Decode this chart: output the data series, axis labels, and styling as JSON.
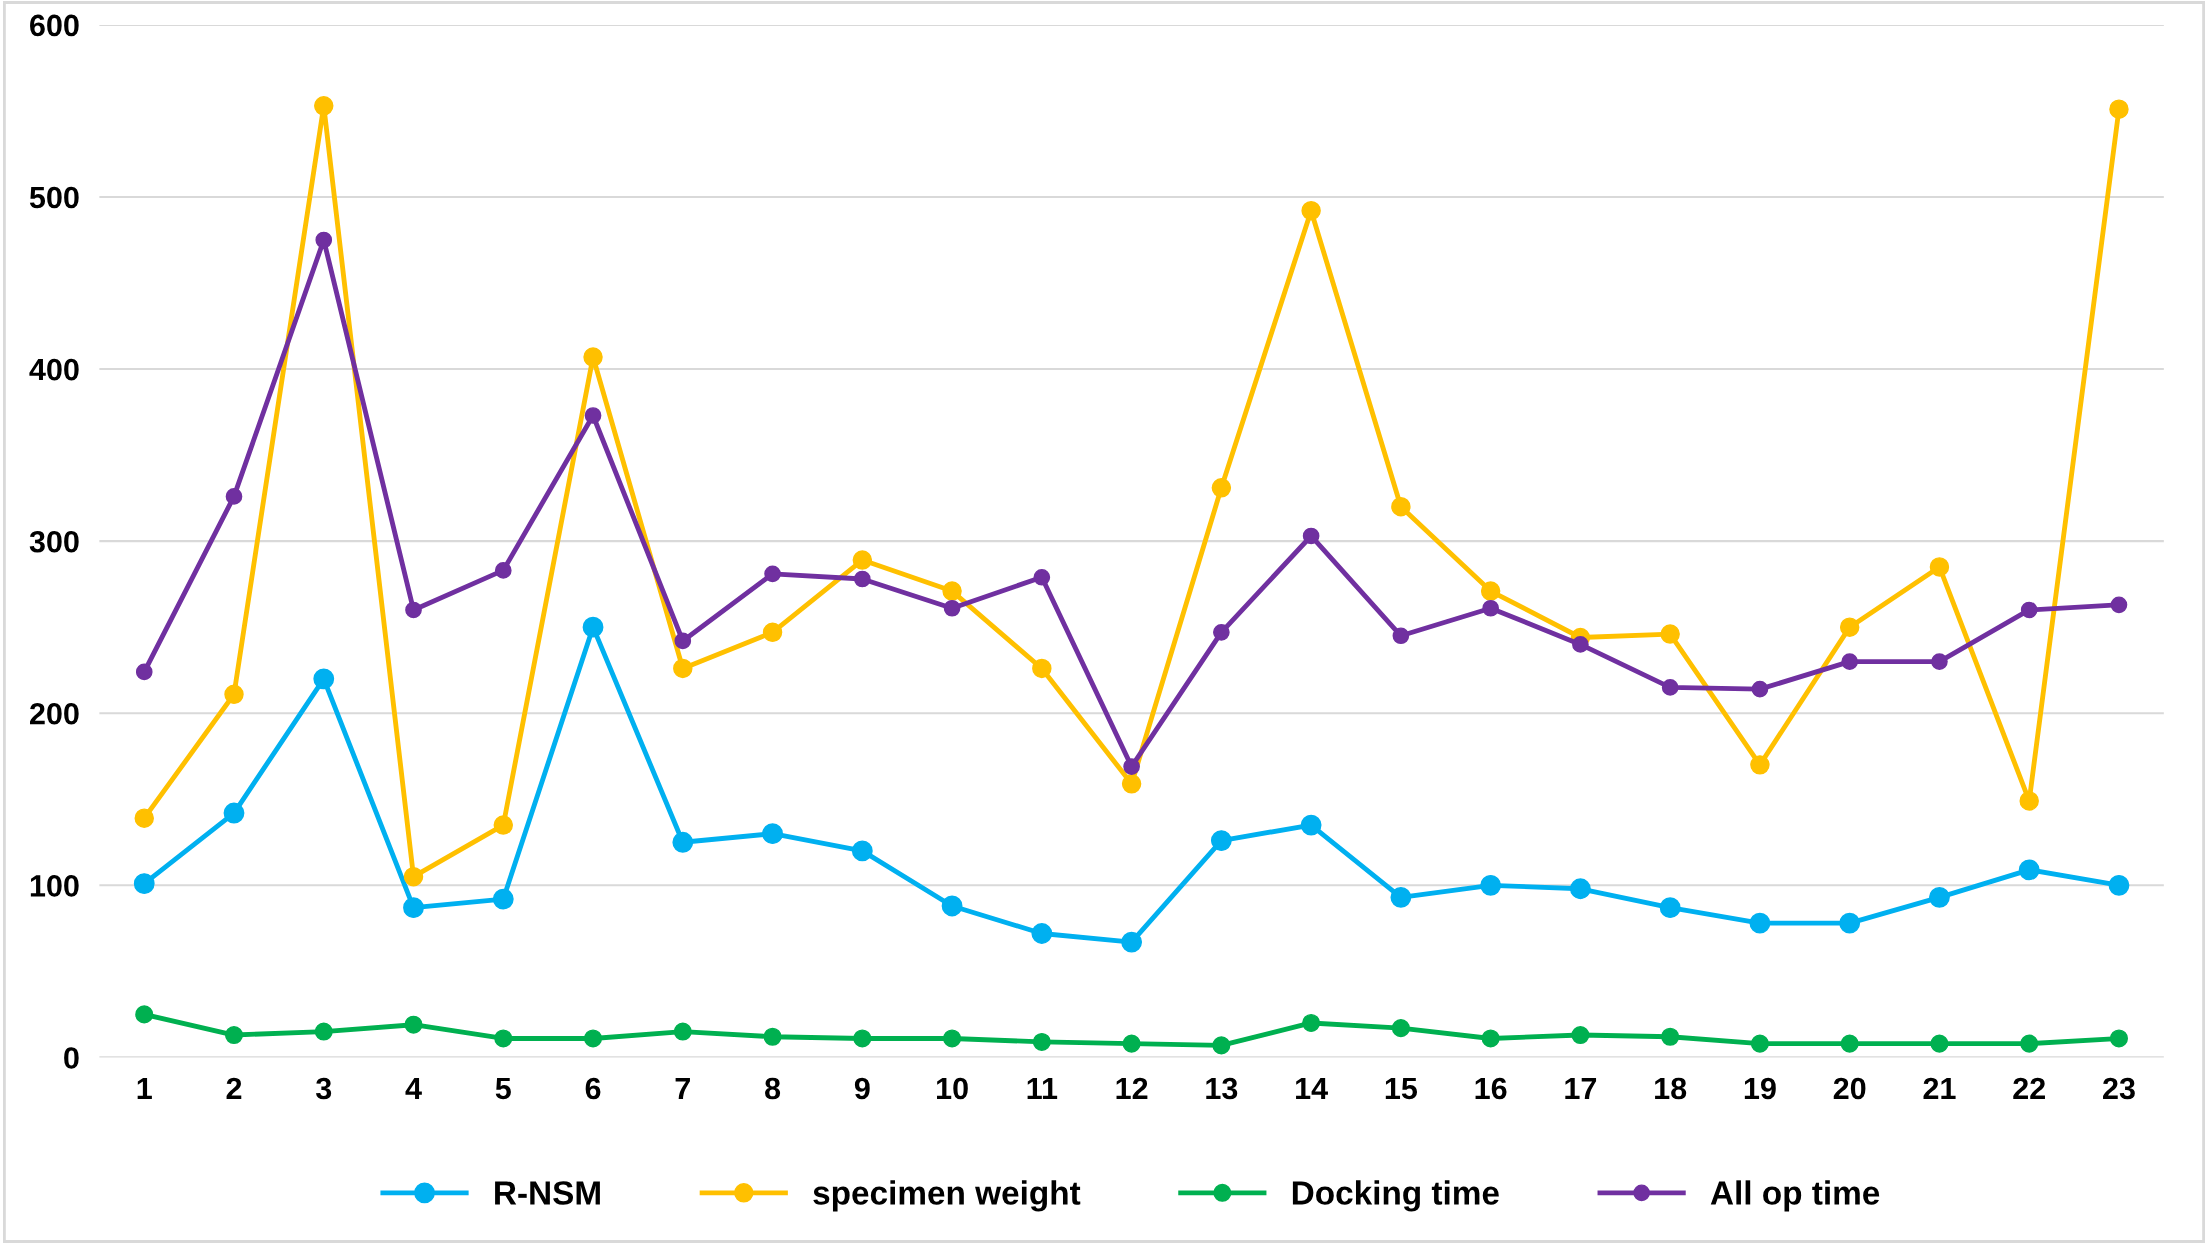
{
  "chart_data": {
    "type": "line",
    "categories": [
      "1",
      "2",
      "3",
      "4",
      "5",
      "6",
      "7",
      "8",
      "9",
      "10",
      "11",
      "12",
      "13",
      "14",
      "15",
      "16",
      "17",
      "18",
      "19",
      "20",
      "21",
      "22",
      "23"
    ],
    "series": [
      {
        "name": "R-NSM",
        "color": "#00b0f0",
        "values": [
          101,
          142,
          220,
          87,
          92,
          250,
          125,
          130,
          120,
          88,
          72,
          67,
          126,
          135,
          93,
          100,
          98,
          87,
          78,
          78,
          93,
          109,
          100
        ]
      },
      {
        "name": "specimen weight",
        "color": "#ffc000",
        "values": [
          139,
          211,
          553,
          105,
          135,
          407,
          226,
          247,
          289,
          271,
          226,
          159,
          331,
          492,
          320,
          271,
          244,
          246,
          170,
          250,
          285,
          149,
          551
        ]
      },
      {
        "name": "Docking time",
        "color": "#00b050",
        "values": [
          25,
          13,
          15,
          19,
          11,
          11,
          15,
          12,
          11,
          11,
          9,
          8,
          7,
          20,
          17,
          11,
          13,
          12,
          8,
          8,
          8,
          8,
          11
        ]
      },
      {
        "name": "All op time",
        "color": "#7030a0",
        "values": [
          224,
          326,
          475,
          260,
          283,
          373,
          242,
          281,
          278,
          261,
          279,
          169,
          247,
          303,
          245,
          261,
          240,
          215,
          214,
          230,
          230,
          260,
          263
        ]
      }
    ],
    "ylim": [
      0,
      600
    ],
    "yticks": [
      0,
      100,
      200,
      300,
      400,
      500,
      600
    ],
    "grid": "y",
    "legend": "bottom",
    "marker": "circle",
    "line_style": "solid"
  }
}
